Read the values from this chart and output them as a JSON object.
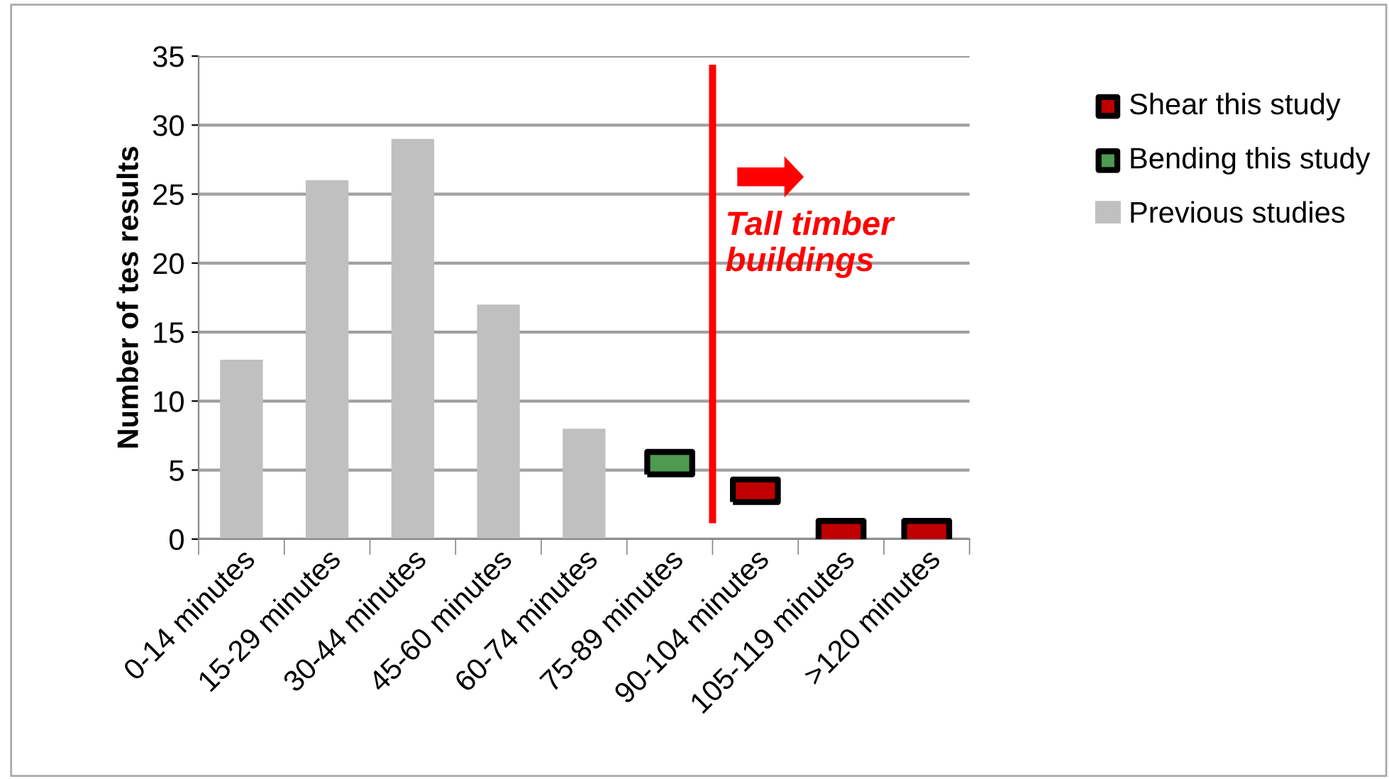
{
  "chart_data": {
    "type": "bar",
    "ylabel": "Number of tes results",
    "categories": [
      "0-14 minutes",
      "15-29 minutes",
      "30-44 minutes",
      "45-60 minutes",
      "60-74 minutes",
      "75-89 minutes",
      "90-104 minutes",
      "105-119 minutes",
      ">120 minutes"
    ],
    "series": [
      {
        "name": "Shear this study",
        "type": "scatter",
        "color": "#c00000",
        "x": [
          "90-104 minutes",
          "105-119 minutes",
          ">120 minutes"
        ],
        "values": [
          3.5,
          0.5,
          0.5
        ]
      },
      {
        "name": "Bending this study",
        "type": "scatter",
        "color": "#4e9a50",
        "x": [
          "75-89 minutes"
        ],
        "values": [
          5.5
        ]
      },
      {
        "name": "Previous studies",
        "color": "#c0c0c0",
        "values": [
          13,
          26,
          29,
          17,
          8,
          null,
          null,
          0,
          0
        ]
      }
    ],
    "ylim": [
      0,
      35
    ],
    "yticks": [
      0,
      5,
      10,
      15,
      20,
      25,
      30,
      35
    ],
    "grid": "y",
    "legend": "right",
    "annotations": [
      "Tall timber buildings"
    ]
  }
}
